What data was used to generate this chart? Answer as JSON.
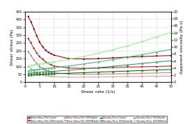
{
  "x": [
    1,
    2,
    3,
    4,
    5,
    6,
    7,
    8,
    9,
    10,
    15,
    20,
    25,
    30,
    35,
    40,
    45,
    50
  ],
  "shear_stress": {
    "Control": [
      420,
      385,
      340,
      295,
      255,
      225,
      205,
      190,
      180,
      172,
      150,
      148,
      150,
      155,
      160,
      163,
      167,
      170
    ],
    "100%Isomalt": [
      280,
      250,
      215,
      185,
      162,
      145,
      130,
      118,
      110,
      103,
      90,
      88,
      90,
      93,
      96,
      98,
      100,
      103
    ],
    "100%Xylitol": [
      195,
      170,
      142,
      118,
      100,
      87,
      77,
      70,
      64,
      60,
      52,
      50,
      51,
      53,
      55,
      57,
      59,
      61
    ],
    "100%Maltitol": [
      100,
      85,
      70,
      60,
      52,
      46,
      42,
      39,
      36,
      35,
      32,
      32,
      33,
      34,
      36,
      37,
      38,
      39
    ]
  },
  "viscosity": {
    "Control": [
      2.0,
      2.1,
      2.15,
      2.2,
      2.25,
      2.3,
      2.35,
      2.38,
      2.4,
      2.42,
      2.55,
      2.7,
      2.85,
      3.0,
      3.15,
      3.3,
      3.45,
      3.6
    ],
    "100%Isomalt": [
      2.5,
      2.6,
      2.7,
      2.78,
      2.85,
      2.9,
      2.95,
      3.0,
      3.05,
      3.1,
      3.4,
      3.75,
      4.1,
      4.5,
      4.9,
      5.3,
      5.7,
      6.1
    ],
    "100%Xylitol": [
      3.2,
      3.35,
      3.5,
      3.62,
      3.72,
      3.8,
      3.88,
      3.95,
      4.02,
      4.1,
      4.6,
      5.15,
      5.75,
      6.4,
      7.1,
      7.8,
      8.55,
      9.3
    ],
    "100%Maltitol": [
      4.5,
      4.7,
      4.9,
      5.08,
      5.22,
      5.35,
      5.47,
      5.58,
      5.68,
      5.78,
      6.5,
      7.3,
      8.2,
      9.2,
      10.3,
      11.5,
      12.8,
      14.2
    ]
  },
  "shear_stress_colors": {
    "Control": "#8B0000",
    "100%Isomalt": "#B22222",
    "100%Xylitol": "#C08080",
    "100%Maltitol": "#D4A090"
  },
  "viscosity_colors": {
    "Control": "#006400",
    "100%Isomalt": "#2E8B57",
    "100%Xylitol": "#3CB371",
    "100%Maltitol": "#90EE90"
  },
  "xlim": [
    0,
    50
  ],
  "ylim_left": [
    0,
    450
  ],
  "ylim_right": [
    0,
    20
  ],
  "xlabel": "Shear rate (1/s)",
  "ylabel_left": "Shear stress (Pa)",
  "ylabel_right": "Apparent viscosity (Pa.s)",
  "xticks": [
    0,
    5,
    10,
    15,
    20,
    25,
    30,
    35,
    40,
    45,
    50
  ],
  "yticks_left": [
    0,
    50,
    100,
    150,
    200,
    250,
    300,
    350,
    400,
    450
  ],
  "yticks_right": [
    0,
    2,
    4,
    6,
    8,
    10,
    12,
    14,
    16,
    18,
    20
  ],
  "legend_labels_ss": [
    "Shear Stress (Pa) Control",
    "Shear Stress (Pa) 100%Isomalt",
    "Shear Stress (Pa) 100%Xylitol",
    "Shear Stress (Pa) 100%Maltitol"
  ],
  "legend_labels_visc": [
    "Viscosity (Pa.s) Control",
    "Viscosity (Pa.s) 100%Isomalt",
    "Viscosity (Pa.s) 100%Xylitol",
    "Viscosity (Pa.s) 100%Maltitol"
  ]
}
